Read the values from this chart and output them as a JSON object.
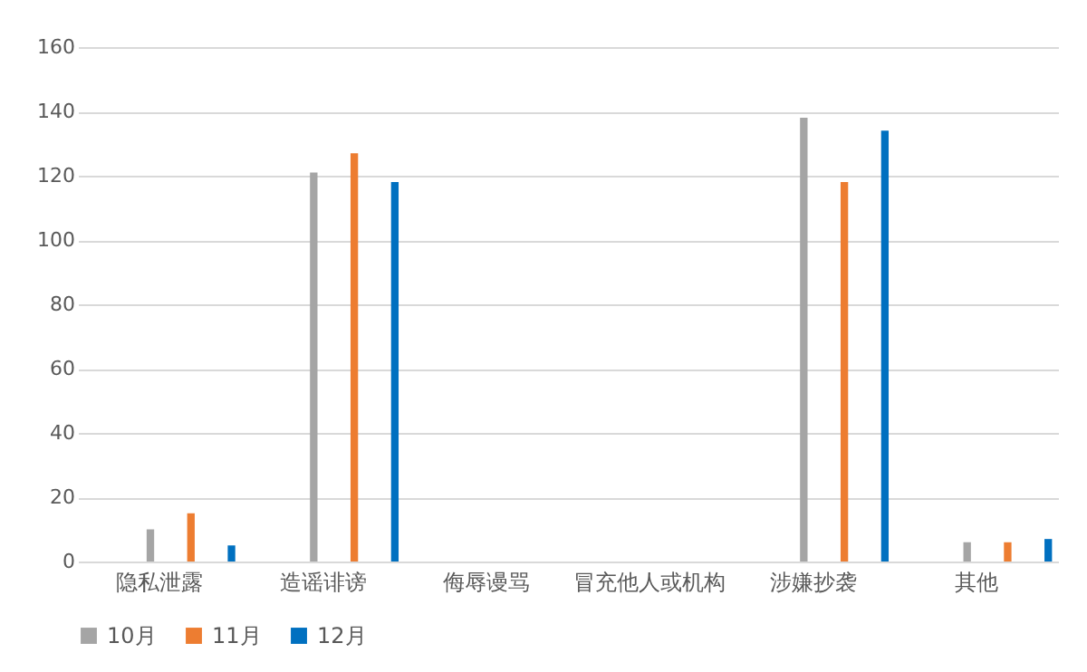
{
  "chart_data": {
    "type": "bar",
    "categories": [
      "隐私泄露",
      "造谣诽谤",
      "侮辱谩骂",
      "冒充他人或机构",
      "涉嫌抄袭",
      "其他"
    ],
    "series": [
      {
        "name": "10月",
        "color": "#a5a5a5",
        "values": [
          10,
          121,
          0,
          0,
          138,
          6
        ]
      },
      {
        "name": "11月",
        "color": "#ed7d31",
        "values": [
          15,
          127,
          0,
          0,
          118,
          6
        ]
      },
      {
        "name": "12月",
        "color": "#0070c0",
        "values": [
          5,
          118,
          0,
          0,
          134,
          7
        ]
      }
    ],
    "ylim": [
      0,
      160
    ],
    "yticks": [
      0,
      20,
      40,
      60,
      80,
      100,
      120,
      140,
      160
    ],
    "grid": "y",
    "legend": "bottom"
  }
}
